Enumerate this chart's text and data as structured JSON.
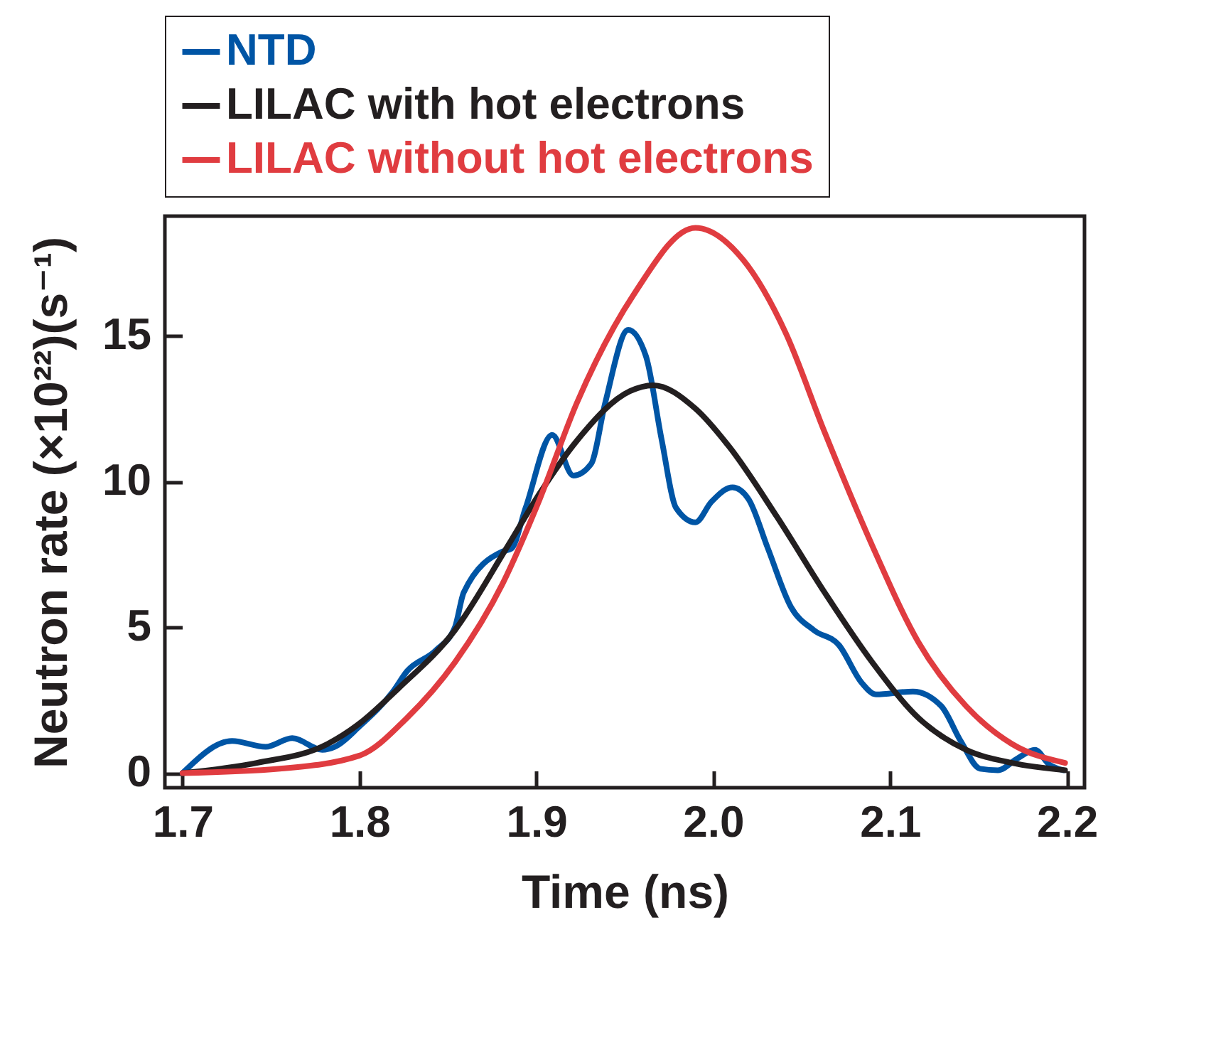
{
  "chart_data": {
    "type": "line",
    "xlabel": "Time (ns)",
    "ylabel": "Neutron rate (×10²²)(s⁻¹)",
    "xlim": [
      1.69,
      2.21
    ],
    "xticks": [
      {
        "value": 1.7,
        "label": "1.7"
      },
      {
        "value": 1.8,
        "label": "1.8"
      },
      {
        "value": 1.9,
        "label": "1.9"
      },
      {
        "value": 2.0,
        "label": "2.0"
      },
      {
        "value": 2.1,
        "label": "2.1"
      },
      {
        "value": 2.2,
        "label": "2.2"
      }
    ],
    "ylim": [
      -0.5,
      19.1
    ],
    "yticks": [
      0,
      5,
      10,
      15
    ],
    "legend": "top",
    "grid": false,
    "marker": "none",
    "line_style": "solid",
    "series": [
      {
        "name": "NTD",
        "color": "#0055a5",
        "x": [
          1.7,
          1.728,
          1.747,
          1.762,
          1.779,
          1.786,
          1.8,
          1.819,
          1.827,
          1.843,
          1.854,
          1.859,
          1.881,
          1.886,
          1.894,
          1.909,
          1.921,
          1.931,
          1.939,
          1.952,
          1.962,
          1.971,
          1.979,
          1.99,
          1.999,
          2.011,
          2.02,
          2.031,
          2.044,
          2.057,
          2.071,
          2.084,
          2.092,
          2.113,
          2.129,
          2.14,
          2.151,
          2.161,
          2.172,
          2.182,
          2.19,
          2.198
        ],
        "values": [
          0,
          1.1,
          0.9,
          1.2,
          0.8,
          0.9,
          1.6,
          2.8,
          3.5,
          4.2,
          5.0,
          6.2,
          7.6,
          7.7,
          9.1,
          11.6,
          10.2,
          10.6,
          12.7,
          15.2,
          14.3,
          11.4,
          9.1,
          8.6,
          9.3,
          9.8,
          9.4,
          7.7,
          5.7,
          4.9,
          4.4,
          3.1,
          2.7,
          2.8,
          2.3,
          1.1,
          0.15,
          0.1,
          0.5,
          0.8,
          0.3,
          0.1
        ]
      },
      {
        "name": "LILAC with hot electrons",
        "color": "#231f20",
        "x": [
          1.7,
          1.742,
          1.782,
          1.8,
          1.822,
          1.854,
          1.883,
          1.902,
          1.923,
          1.953,
          1.966,
          1.99,
          2.009,
          2.036,
          2.063,
          2.09,
          2.116,
          2.143,
          2.169,
          2.199
        ],
        "values": [
          0,
          0.35,
          1.0,
          1.7,
          2.9,
          4.9,
          7.7,
          9.6,
          11.4,
          13.1,
          13.3,
          12.5,
          11.2,
          8.8,
          6.2,
          3.8,
          1.9,
          0.8,
          0.35,
          0.1
        ]
      },
      {
        "name": "LILAC without hot electrons",
        "color": "#e03c40",
        "x": [
          1.7,
          1.755,
          1.8,
          1.827,
          1.854,
          1.881,
          1.902,
          1.923,
          1.955,
          1.99,
          2.017,
          2.041,
          2.063,
          2.09,
          2.116,
          2.143,
          2.169,
          2.199
        ],
        "values": [
          0,
          0.15,
          0.6,
          1.9,
          3.8,
          6.5,
          9.4,
          12.7,
          16.4,
          18.7,
          17.6,
          15.1,
          11.7,
          7.8,
          4.5,
          2.3,
          1.0,
          0.35
        ]
      }
    ]
  }
}
